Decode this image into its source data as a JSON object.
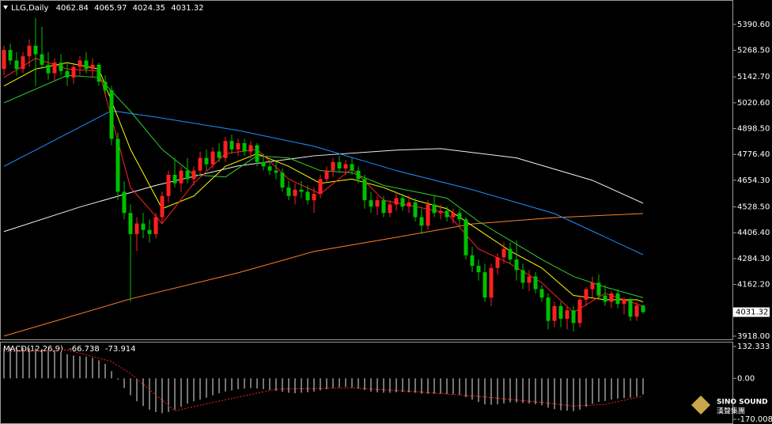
{
  "chart_data": {
    "type": "candlestick",
    "symbol": "LLG,Daily",
    "ohlc": [
      4062.84,
      4065.97,
      4024.35,
      4031.32
    ],
    "up_color": "#ff2020",
    "down_color": "#00c000",
    "ylim": [
      3899,
      5506
    ],
    "yticks": [
      {
        "value": 5390.6,
        "label": "5390.60"
      },
      {
        "value": 5268.5,
        "label": "5268.50"
      },
      {
        "value": 5142.7,
        "label": "5142.70"
      },
      {
        "value": 5020.6,
        "label": "5020.60"
      },
      {
        "value": 4898.5,
        "label": "4898.50"
      },
      {
        "value": 4776.4,
        "label": "4776.40"
      },
      {
        "value": 4654.3,
        "label": "4654.30"
      },
      {
        "value": 4528.5,
        "label": "4528.50"
      },
      {
        "value": 4406.4,
        "label": "4406.40"
      },
      {
        "value": 4284.3,
        "label": "4284.30"
      },
      {
        "value": 4162.2,
        "label": "4162.20"
      },
      {
        "value": 3918,
        "label": "3918.00"
      }
    ],
    "last_price": 4031.32,
    "candles": [
      [
        5180,
        5290,
        5150,
        5270
      ],
      [
        5270,
        5300,
        5200,
        5220
      ],
      [
        5220,
        5260,
        5150,
        5180
      ],
      [
        5180,
        5260,
        5160,
        5240
      ],
      [
        5240,
        5320,
        5190,
        5290
      ],
      [
        5290,
        5420,
        5100,
        5250
      ],
      [
        5250,
        5380,
        5180,
        5200
      ],
      [
        5200,
        5260,
        5130,
        5160
      ],
      [
        5160,
        5230,
        5120,
        5210
      ],
      [
        5210,
        5250,
        5150,
        5170
      ],
      [
        5170,
        5210,
        5100,
        5140
      ],
      [
        5140,
        5200,
        5110,
        5190
      ],
      [
        5190,
        5240,
        5150,
        5220
      ],
      [
        5220,
        5260,
        5160,
        5180
      ],
      [
        5180,
        5230,
        5140,
        5200
      ],
      [
        5200,
        5210,
        5100,
        5120
      ],
      [
        5120,
        5150,
        5060,
        5080
      ],
      [
        5080,
        5100,
        4820,
        4850
      ],
      [
        4850,
        4880,
        4560,
        4600
      ],
      [
        4600,
        4650,
        4470,
        4500
      ],
      [
        4500,
        4540,
        4080,
        4400
      ],
      [
        4400,
        4480,
        4320,
        4450
      ],
      [
        4450,
        4500,
        4380,
        4420
      ],
      [
        4420,
        4470,
        4360,
        4400
      ],
      [
        4400,
        4500,
        4380,
        4480
      ],
      [
        4480,
        4600,
        4450,
        4580
      ],
      [
        4580,
        4700,
        4550,
        4680
      ],
      [
        4680,
        4760,
        4620,
        4640
      ],
      [
        4640,
        4720,
        4600,
        4700
      ],
      [
        4700,
        4760,
        4640,
        4660
      ],
      [
        4660,
        4720,
        4630,
        4700
      ],
      [
        4700,
        4790,
        4680,
        4760
      ],
      [
        4760,
        4800,
        4700,
        4730
      ],
      [
        4730,
        4810,
        4710,
        4790
      ],
      [
        4790,
        4830,
        4740,
        4760
      ],
      [
        4760,
        4860,
        4740,
        4840
      ],
      [
        4840,
        4870,
        4780,
        4800
      ],
      [
        4800,
        4850,
        4770,
        4830
      ],
      [
        4830,
        4850,
        4770,
        4790
      ],
      [
        4790,
        4840,
        4760,
        4820
      ],
      [
        4820,
        4830,
        4720,
        4740
      ],
      [
        4740,
        4780,
        4700,
        4720
      ],
      [
        4720,
        4750,
        4680,
        4700
      ],
      [
        4700,
        4740,
        4660,
        4690
      ],
      [
        4690,
        4710,
        4600,
        4620
      ],
      [
        4620,
        4650,
        4560,
        4580
      ],
      [
        4580,
        4640,
        4540,
        4610
      ],
      [
        4610,
        4650,
        4570,
        4600
      ],
      [
        4600,
        4630,
        4540,
        4560
      ],
      [
        4560,
        4620,
        4500,
        4590
      ],
      [
        4590,
        4680,
        4570,
        4660
      ],
      [
        4660,
        4720,
        4640,
        4700
      ],
      [
        4700,
        4760,
        4670,
        4740
      ],
      [
        4740,
        4770,
        4690,
        4710
      ],
      [
        4710,
        4750,
        4680,
        4730
      ],
      [
        4730,
        4760,
        4680,
        4700
      ],
      [
        4700,
        4720,
        4640,
        4660
      ],
      [
        4660,
        4680,
        4520,
        4560
      ],
      [
        4560,
        4600,
        4500,
        4530
      ],
      [
        4530,
        4580,
        4490,
        4560
      ],
      [
        4560,
        4580,
        4480,
        4500
      ],
      [
        4500,
        4560,
        4480,
        4540
      ],
      [
        4540,
        4600,
        4510,
        4570
      ],
      [
        4570,
        4590,
        4510,
        4530
      ],
      [
        4530,
        4580,
        4500,
        4550
      ],
      [
        4550,
        4570,
        4460,
        4480
      ],
      [
        4480,
        4520,
        4400,
        4440
      ],
      [
        4440,
        4560,
        4420,
        4540
      ],
      [
        4540,
        4580,
        4480,
        4500
      ],
      [
        4500,
        4540,
        4470,
        4510
      ],
      [
        4510,
        4530,
        4460,
        4480
      ],
      [
        4480,
        4520,
        4450,
        4500
      ],
      [
        4500,
        4520,
        4440,
        4470
      ],
      [
        4470,
        4480,
        4280,
        4300
      ],
      [
        4300,
        4340,
        4220,
        4250
      ],
      [
        4250,
        4280,
        4180,
        4220
      ],
      [
        4220,
        4260,
        4080,
        4100
      ],
      [
        4100,
        4260,
        4060,
        4240
      ],
      [
        4240,
        4310,
        4210,
        4290
      ],
      [
        4290,
        4360,
        4260,
        4330
      ],
      [
        4330,
        4360,
        4260,
        4280
      ],
      [
        4280,
        4370,
        4180,
        4230
      ],
      [
        4230,
        4260,
        4140,
        4170
      ],
      [
        4170,
        4230,
        4130,
        4200
      ],
      [
        4200,
        4220,
        4120,
        4140
      ],
      [
        4140,
        4160,
        4080,
        4100
      ],
      [
        4100,
        4120,
        3950,
        3990
      ],
      [
        3990,
        4080,
        3960,
        4060
      ],
      [
        4060,
        4080,
        3960,
        4000
      ],
      [
        4000,
        4060,
        3950,
        4040
      ],
      [
        4040,
        4060,
        3940,
        3980
      ],
      [
        3980,
        4110,
        3960,
        4090
      ],
      [
        4090,
        4150,
        4060,
        4140
      ],
      [
        4140,
        4200,
        4100,
        4170
      ],
      [
        4170,
        4210,
        4090,
        4110
      ],
      [
        4110,
        4160,
        4060,
        4080
      ],
      [
        4080,
        4130,
        4050,
        4120
      ],
      [
        4120,
        4140,
        4050,
        4070
      ],
      [
        4070,
        4100,
        4020,
        4090
      ],
      [
        4090,
        4100,
        3990,
        4010
      ],
      [
        4010,
        4080,
        3990,
        4062.84
      ],
      [
        4062.84,
        4065.97,
        4024.35,
        4031.32
      ]
    ],
    "ma_lines": [
      {
        "color": "#ff7f27",
        "x": [
          0,
          20,
          37,
          49,
          62,
          74,
          87,
          101
        ],
        "values": [
          3918,
          4094,
          4217,
          4318,
          4385,
          4448,
          4478,
          4497
        ]
      },
      {
        "color": "#f0f0f0",
        "x": [
          0,
          12,
          24,
          37,
          49,
          62,
          69,
          81,
          93,
          101
        ],
        "values": [
          4412,
          4528,
          4630,
          4722,
          4770,
          4797,
          4804,
          4760,
          4654,
          4546
        ]
      },
      {
        "color": "#1e90ff",
        "x": [
          0,
          17,
          24,
          37,
          49,
          62,
          74,
          87,
          101
        ],
        "values": [
          4720,
          4983,
          4953,
          4890,
          4815,
          4700,
          4610,
          4497,
          4303
        ]
      },
      {
        "color": "#32cd32",
        "x": [
          0,
          10,
          15,
          20,
          25,
          30,
          35,
          40,
          45,
          50,
          55,
          60,
          65,
          70,
          75,
          80,
          85,
          90,
          95,
          101
        ],
        "values": [
          5020,
          5150,
          5140,
          4980,
          4800,
          4680,
          4670,
          4770,
          4760,
          4700,
          4690,
          4630,
          4600,
          4570,
          4460,
          4370,
          4280,
          4200,
          4150,
          4100
        ]
      },
      {
        "color": "#ffff00",
        "x": [
          0,
          5,
          10,
          15,
          20,
          25,
          30,
          35,
          40,
          45,
          50,
          55,
          60,
          65,
          70,
          75,
          80,
          85,
          90,
          95,
          100,
          101
        ],
        "values": [
          5100,
          5180,
          5210,
          5180,
          4800,
          4520,
          4580,
          4720,
          4780,
          4720,
          4640,
          4660,
          4620,
          4560,
          4520,
          4420,
          4320,
          4240,
          4110,
          4090,
          4090,
          4080
        ]
      },
      {
        "color": "#ff2020",
        "x": [
          0,
          5,
          10,
          15,
          20,
          25,
          30,
          35,
          40,
          45,
          50,
          55,
          60,
          65,
          70,
          75,
          80,
          85,
          90,
          95,
          100,
          101
        ],
        "values": [
          5140,
          5230,
          5180,
          5170,
          4620,
          4450,
          4640,
          4780,
          4800,
          4660,
          4590,
          4710,
          4560,
          4530,
          4500,
          4330,
          4260,
          4170,
          4030,
          4120,
          4070,
          4060
        ]
      }
    ],
    "macd": {
      "label": "MACD(12,26,9)",
      "values": [
        -66.738,
        -73.914
      ],
      "ylim": [
        -183,
        152
      ],
      "yticks": [
        132.333,
        {
          "value": 0,
          "label": "0.00"
        },
        -170.008
      ],
      "hist_color": "#e8e8e8",
      "histogram": [
        125,
        128,
        130,
        128,
        126,
        124,
        122,
        118,
        112,
        108,
        100,
        95,
        92,
        90,
        85,
        75,
        60,
        30,
        -5,
        -40,
        -70,
        -95,
        -115,
        -130,
        -140,
        -145,
        -140,
        -130,
        -118,
        -105,
        -95,
        -88,
        -80,
        -70,
        -62,
        -55,
        -50,
        -45,
        -42,
        -40,
        -42,
        -45,
        -48,
        -52,
        -56,
        -60,
        -62,
        -60,
        -58,
        -55,
        -50,
        -45,
        -40,
        -38,
        -36,
        -38,
        -42,
        -48,
        -55,
        -58,
        -60,
        -60,
        -58,
        -57,
        -58,
        -60,
        -64,
        -64,
        -64,
        -64,
        -65,
        -66,
        -68,
        -78,
        -88,
        -98,
        -108,
        -110,
        -108,
        -104,
        -100,
        -100,
        -102,
        -104,
        -108,
        -112,
        -122,
        -128,
        -132,
        -134,
        -136,
        -130,
        -118,
        -106,
        -98,
        -94,
        -88,
        -84,
        -82,
        -80,
        -76,
        -66.738
      ],
      "signal": {
        "color": "#ff2020",
        "x": [
          0,
          10,
          17,
          20,
          27,
          33,
          43,
          55,
          65,
          75,
          85,
          90,
          95,
          101
        ],
        "values": [
          110,
          118,
          70,
          20,
          -135,
          -100,
          -45,
          -40,
          -55,
          -75,
          -100,
          -115,
          -108,
          -73.914
        ]
      }
    },
    "watermark": {
      "brand": "SINO SOUND",
      "chinese": "漢聲集團"
    }
  }
}
